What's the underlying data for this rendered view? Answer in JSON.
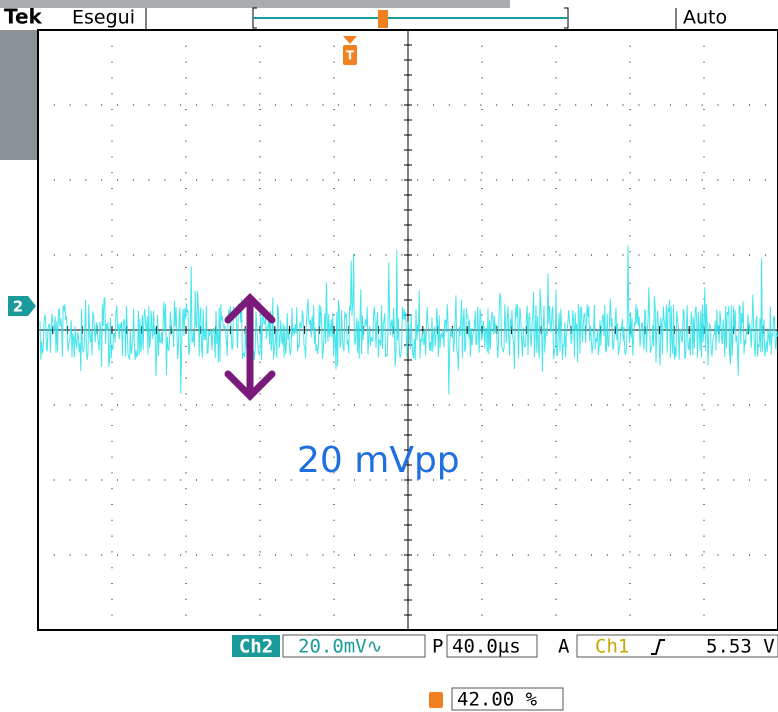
{
  "header": {
    "brand": "Tek",
    "state": "Esegui",
    "mode": "Auto"
  },
  "channel_marker": "2",
  "annotation": "20 mVpp",
  "readout": {
    "channel": "Ch2",
    "scale": "20.0mV∿",
    "position_label": "P",
    "timebase": "40.0µs",
    "acquire_label": "A",
    "trigger_source": "Ch1",
    "trigger_level": "5.53 V",
    "trigger_position": "42.00 %"
  }
}
